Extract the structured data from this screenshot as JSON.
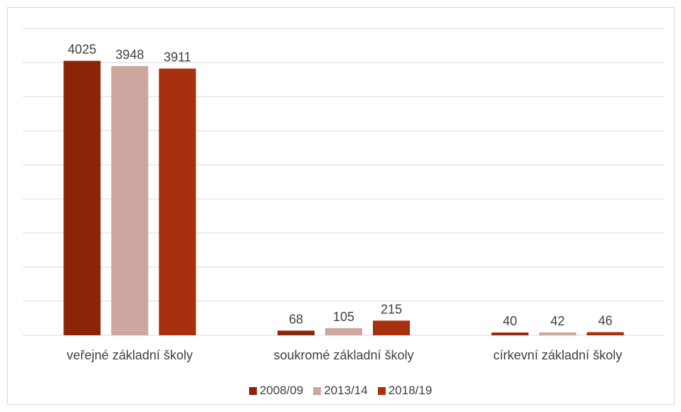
{
  "chart_data": {
    "type": "bar",
    "categories": [
      "veřejné základní školy",
      "soukromé základní školy",
      "církevní základní školy"
    ],
    "series": [
      {
        "name": "2008/09",
        "values": [
          4025,
          68,
          40
        ],
        "color": "#8b2508"
      },
      {
        "name": "2013/14",
        "values": [
          3948,
          105,
          42
        ],
        "color": "#cda6a0"
      },
      {
        "name": "2018/19",
        "values": [
          3911,
          215,
          46
        ],
        "color": "#a8300f"
      }
    ],
    "ylim": [
      0,
      4500
    ],
    "grid": true,
    "legend": "bottom",
    "data_labels": true
  }
}
